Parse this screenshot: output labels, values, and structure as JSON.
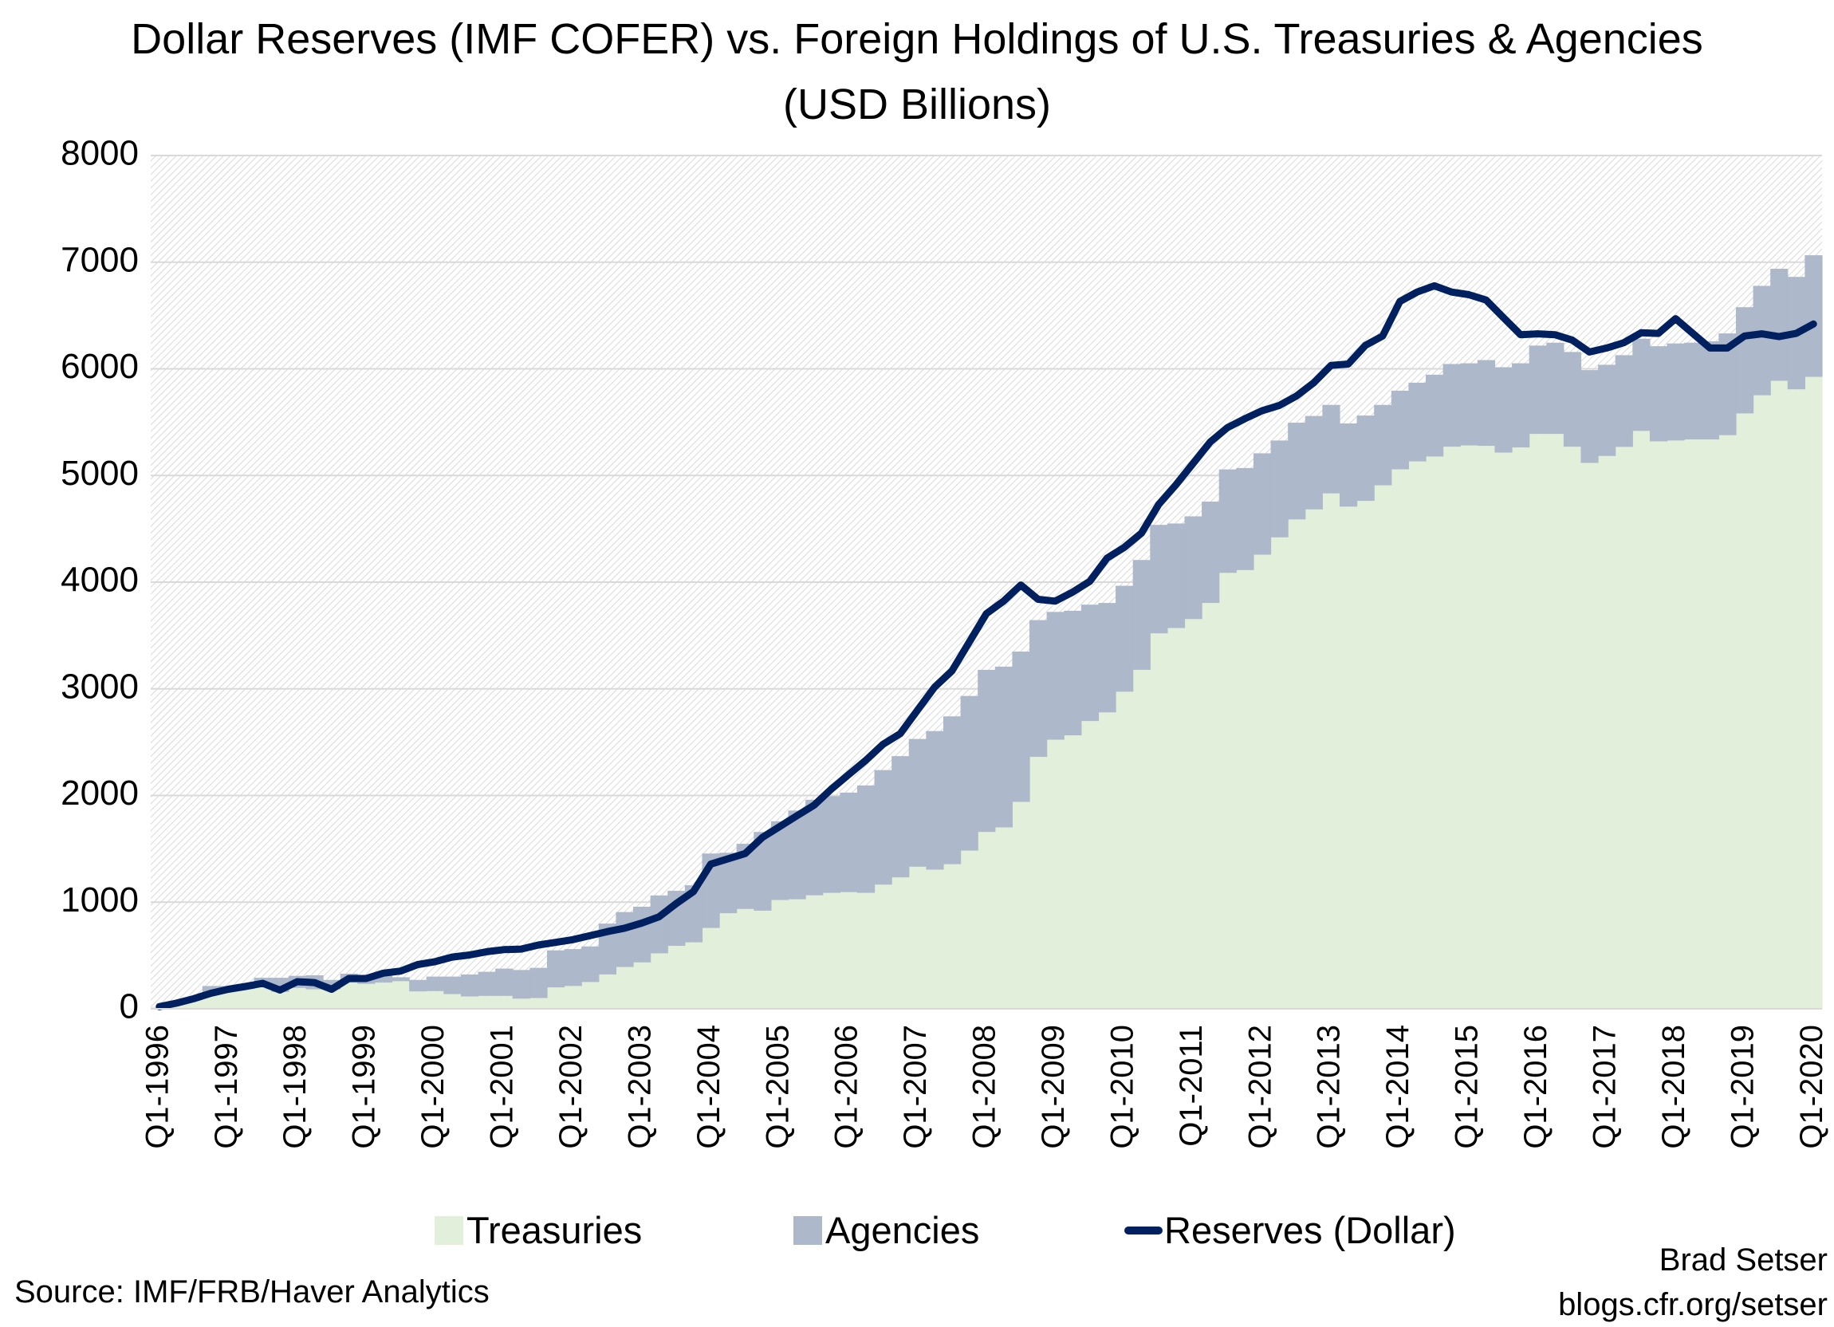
{
  "title": {
    "line1": "Dollar Reserves (IMF COFER) vs. Foreign Holdings of U.S. Treasuries & Agencies",
    "line2": "(USD Billions)"
  },
  "source": "Source: IMF/FRB/Haver Analytics",
  "credit": {
    "author": "Brad Setser",
    "site": "blogs.cfr.org/setser"
  },
  "colors": {
    "treasuries": "#e2efda",
    "agencies": "#adb9ca",
    "reserves": "#002060",
    "grid": "#d9d9d9",
    "hatch": "#c8c8c8"
  },
  "chart_data": {
    "type": "area",
    "stacked": true,
    "title": "Dollar Reserves (IMF COFER) vs. Foreign Holdings of U.S. Treasuries & Agencies (USD Billions)",
    "frequency": "quarterly",
    "x_start": "Q1-1996",
    "x_ticks": [
      "Q1-1996",
      "Q1-1997",
      "Q1-1998",
      "Q1-1999",
      "Q1-2000",
      "Q1-2001",
      "Q1-2002",
      "Q1-2003",
      "Q1-2004",
      "Q1-2005",
      "Q1-2006",
      "Q1-2007",
      "Q1-2008",
      "Q1-2009",
      "Q1-2010",
      "Q1-2011",
      "Q1-2012",
      "Q1-2013",
      "Q1-2014",
      "Q1-2015",
      "Q1-2016",
      "Q1-2017",
      "Q1-2018",
      "Q1-2019",
      "Q1-2020"
    ],
    "ylim": [
      0,
      8000
    ],
    "y_ticks": [
      0,
      1000,
      2000,
      3000,
      4000,
      5000,
      6000,
      7000,
      8000
    ],
    "grid": true,
    "legend": "bottom",
    "series": [
      {
        "name": "Treasuries",
        "kind": "stacked-area",
        "values": [
          20,
          45,
          100,
          150,
          170,
          185,
          208,
          158,
          196,
          183,
          183,
          246,
          234,
          246,
          259,
          163,
          166,
          138,
          116,
          121,
          121,
          95,
          101,
          201,
          214,
          251,
          322,
          392,
          435,
          520,
          590,
          623,
          758,
          896,
          936,
          920,
          1020,
          1027,
          1064,
          1087,
          1094,
          1087,
          1164,
          1232,
          1332,
          1305,
          1356,
          1483,
          1658,
          1701,
          1940,
          2362,
          2523,
          2564,
          2698,
          2779,
          2973,
          3178,
          3520,
          3570,
          3654,
          3805,
          4087,
          4113,
          4258,
          4420,
          4588,
          4682,
          4832,
          4708,
          4762,
          4908,
          5058,
          5132,
          5178,
          5270,
          5282,
          5278,
          5215,
          5263,
          5390,
          5390,
          5270,
          5118,
          5183,
          5268,
          5418,
          5320,
          5328,
          5338,
          5338,
          5378,
          5582,
          5752,
          5888,
          5808,
          5925
        ]
      },
      {
        "name": "Agencies",
        "kind": "stacked-area",
        "values": [
          0,
          5,
          8,
          64,
          44,
          49,
          83,
          133,
          113,
          131,
          88,
          83,
          75,
          76,
          37,
          108,
          136,
          164,
          206,
          226,
          256,
          269,
          283,
          347,
          346,
          334,
          477,
          515,
          522,
          543,
          516,
          535,
          698,
          567,
          611,
          738,
          738,
          832,
          896,
          906,
          933,
          1007,
          1074,
          1137,
          1198,
          1299,
          1386,
          1450,
          1520,
          1507,
          1409,
          1282,
          1198,
          1168,
          1091,
          1026,
          993,
          1030,
          1017,
          980,
          963,
          950,
          970,
          957,
          950,
          908,
          907,
          876,
          830,
          780,
          800,
          754,
          737,
          738,
          767,
          775,
          770,
          804,
          800,
          789,
          828,
          855,
          888,
          870,
          855,
          860,
          864,
          892,
          910,
          907,
          920,
          954,
          996,
          1026,
          1050,
          1054,
          1140
        ]
      },
      {
        "name": "Reserves (Dollar)",
        "kind": "line",
        "values": [
          20,
          53,
          95,
          146,
          183,
          209,
          239,
          176,
          254,
          246,
          183,
          284,
          284,
          334,
          354,
          415,
          442,
          485,
          505,
          535,
          555,
          560,
          598,
          623,
          648,
          686,
          724,
          756,
          804,
          862,
          987,
          1100,
          1356,
          1406,
          1456,
          1607,
          1708,
          1809,
          1909,
          2060,
          2195,
          2329,
          2480,
          2580,
          2799,
          3017,
          3168,
          3436,
          3705,
          3822,
          3973,
          3839,
          3822,
          3906,
          4007,
          4225,
          4326,
          4460,
          4728,
          4913,
          5114,
          5315,
          5450,
          5532,
          5607,
          5657,
          5745,
          5870,
          6032,
          6045,
          6220,
          6308,
          6632,
          6720,
          6778,
          6720,
          6695,
          6645,
          6482,
          6320,
          6328,
          6320,
          6270,
          6158,
          6195,
          6245,
          6338,
          6332,
          6470,
          6332,
          6195,
          6195,
          6308,
          6328,
          6302,
          6332,
          6420
        ]
      }
    ]
  }
}
